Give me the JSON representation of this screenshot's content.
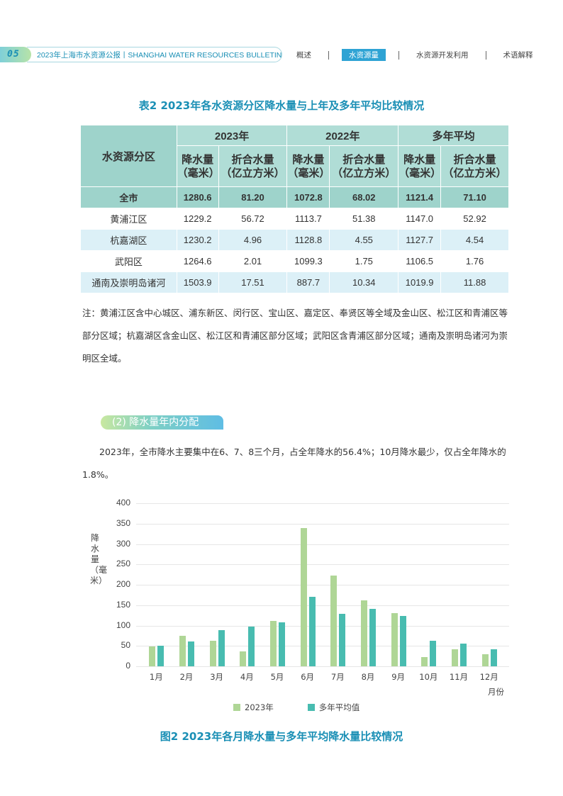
{
  "header": {
    "page_number": "05",
    "bulletin_title": "2023年上海市水资源公报丨SHANGHAI WATER RESOURCES BULLETIN",
    "nav": [
      {
        "label": "概述",
        "active": false
      },
      {
        "label": "水资源量",
        "active": true
      },
      {
        "label": "水资源开发利用",
        "active": false
      },
      {
        "label": "术语解释",
        "active": false
      }
    ]
  },
  "table": {
    "title": "表2  2023年各水资源分区降水量与上年及多年平均比较情况",
    "region_header": "水资源分区",
    "group_headers": [
      "2023年",
      "2022年",
      "多年平均"
    ],
    "sub_headers": {
      "precip_line1": "降水量",
      "precip_line2": "（毫米）",
      "volume_line1": "折合水量",
      "volume_line2": "（亿立方米）"
    },
    "rows": [
      {
        "region": "全市",
        "values": [
          "1280.6",
          "81.20",
          "1072.8",
          "68.02",
          "1121.4",
          "71.10"
        ]
      },
      {
        "region": "黄浦江区",
        "values": [
          "1229.2",
          "56.72",
          "1113.7",
          "51.38",
          "1147.0",
          "52.92"
        ]
      },
      {
        "region": "杭嘉湖区",
        "values": [
          "1230.2",
          "4.96",
          "1128.8",
          "4.55",
          "1127.7",
          "4.54"
        ]
      },
      {
        "region": "武阳区",
        "values": [
          "1264.6",
          "2.01",
          "1099.3",
          "1.75",
          "1106.5",
          "1.76"
        ]
      },
      {
        "region": "通南及崇明岛诸河",
        "values": [
          "1503.9",
          "17.51",
          "887.7",
          "10.34",
          "1019.9",
          "11.88"
        ]
      }
    ],
    "note": "注：黄浦江区含中心城区、浦东新区、闵行区、宝山区、嘉定区、奉贤区等全域及金山区、松江区和青浦区等部分区域；杭嘉湖区含金山区、松江区和青浦区部分区域；武阳区含青浦区部分区域；通南及崇明岛诸河为崇明区全域。"
  },
  "section": {
    "label": "(2) 降水量年内分配",
    "paragraph": "2023年，全市降水主要集中在6、7、8三个月，占全年降水的56.4%；10月降水最少，仅占全年降水的1.8%。"
  },
  "chart_data": {
    "type": "bar",
    "title": "图2  2023年各月降水量与多年平均降水量比较情况",
    "xlabel": "月份",
    "ylabel": "降水量（毫米）",
    "ylim": [
      0,
      400
    ],
    "yticks": [
      0,
      50,
      100,
      150,
      200,
      250,
      300,
      350,
      400
    ],
    "grid": true,
    "legend_position": "bottom",
    "categories": [
      "1月",
      "2月",
      "3月",
      "4月",
      "5月",
      "6月",
      "7月",
      "8月",
      "9月",
      "10月",
      "11月",
      "12月"
    ],
    "series": [
      {
        "name": "2023年",
        "color": "#afd696",
        "values": [
          49,
          75,
          63,
          37,
          112,
          339,
          222,
          162,
          130,
          22,
          41,
          30
        ]
      },
      {
        "name": "多年平均值",
        "color": "#48bcb0",
        "values": [
          50,
          61,
          89,
          97,
          107,
          170,
          128,
          141,
          123,
          62,
          55,
          42
        ]
      }
    ]
  },
  "colors": {
    "accent": "#1a8fb5",
    "nav_active": "#2ea3d4",
    "table_header": "#b0ddd6",
    "table_total_row": "#9ed3cb",
    "table_alt_row": "#dcf0f7"
  }
}
